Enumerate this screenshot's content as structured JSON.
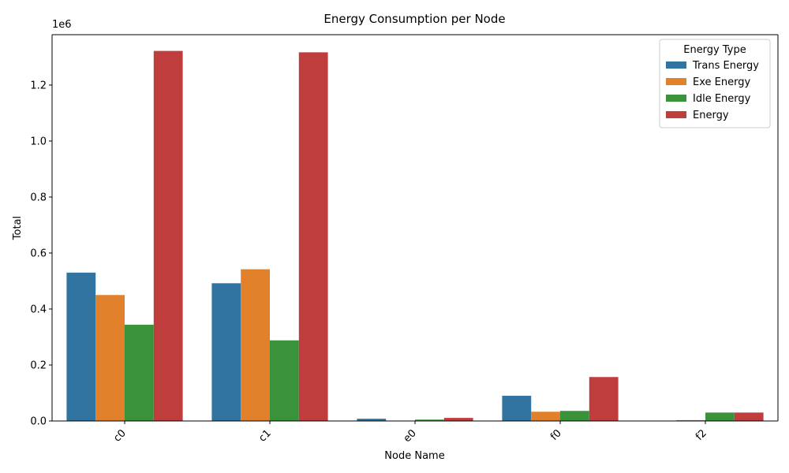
{
  "chart_data": {
    "type": "bar",
    "title": "Energy Consumption per Node",
    "xlabel": "Node Name",
    "ylabel": "Total",
    "y_scale_label": "1e6",
    "categories": [
      "c0",
      "c1",
      "e0",
      "f0",
      "f2"
    ],
    "series": [
      {
        "name": "Trans Energy",
        "color": "#3274a1",
        "values": [
          530000,
          492000,
          8000,
          90000,
          0
        ]
      },
      {
        "name": "Exe Energy",
        "color": "#e1812c",
        "values": [
          450000,
          542000,
          0,
          33000,
          3000
        ]
      },
      {
        "name": "Idle Energy",
        "color": "#3a923a",
        "values": [
          344000,
          288000,
          5000,
          36000,
          30000
        ]
      },
      {
        "name": "Energy",
        "color": "#c03d3e",
        "values": [
          1322000,
          1317000,
          11000,
          157000,
          30000
        ]
      }
    ],
    "ylim": [
      0,
      1380000
    ],
    "yticks": [
      0,
      200000,
      400000,
      600000,
      800000,
      1000000,
      1200000
    ],
    "ytick_labels": [
      "0.0",
      "0.2",
      "0.4",
      "0.6",
      "0.8",
      "1.0",
      "1.2"
    ],
    "legend": {
      "title": "Energy Type",
      "position": "top-right"
    },
    "grid": false,
    "xtick_rotation": 45
  }
}
